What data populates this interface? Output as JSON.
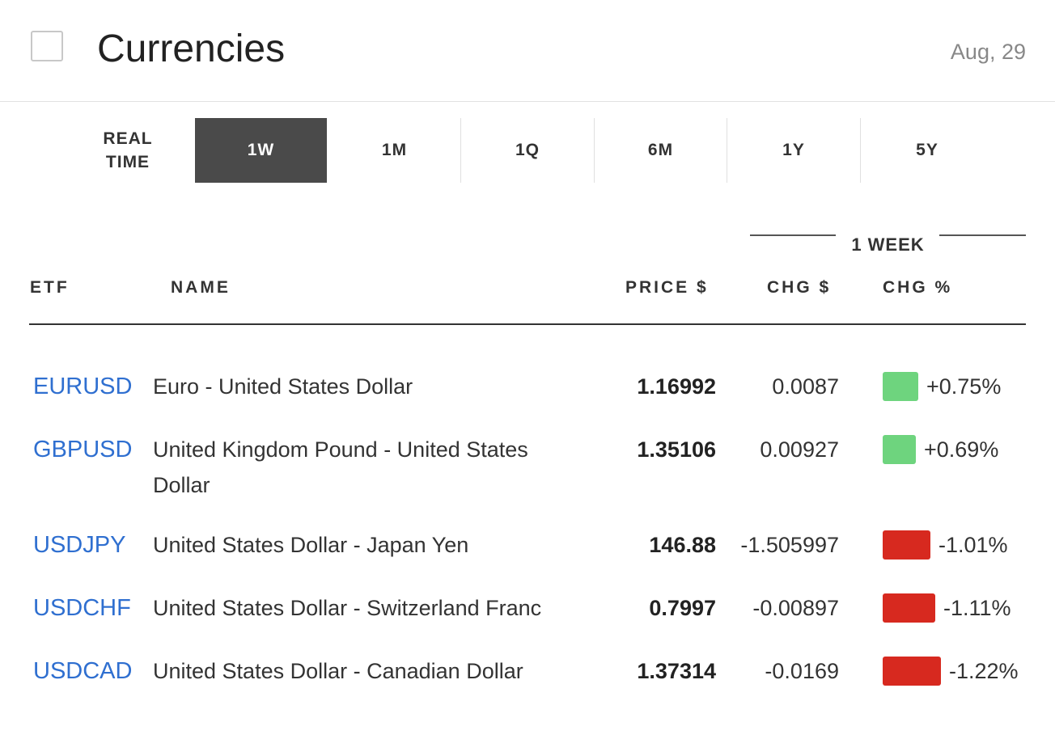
{
  "header": {
    "title": "Currencies",
    "date": "Aug, 29"
  },
  "tabs": [
    {
      "label": "REAL TIME",
      "active": false
    },
    {
      "label": "1W",
      "active": true
    },
    {
      "label": "1M",
      "active": false
    },
    {
      "label": "1Q",
      "active": false
    },
    {
      "label": "6M",
      "active": false
    },
    {
      "label": "1Y",
      "active": false
    },
    {
      "label": "5Y",
      "active": false
    }
  ],
  "table": {
    "period_label": "1 WEEK",
    "columns": {
      "etf": "ETF",
      "name": "NAME",
      "price": "PRICE $",
      "chg": "CHG $",
      "chg_pct": "CHG %"
    },
    "rows": [
      {
        "etf": "EURUSD",
        "name": "Euro - United States Dollar",
        "price": "1.16992",
        "chg": "0.0087",
        "chg_pct": "+0.75%",
        "direction": "up"
      },
      {
        "etf": "GBPUSD",
        "name": "United Kingdom Pound - United States Dollar",
        "price": "1.35106",
        "chg": "0.00927",
        "chg_pct": "+0.69%",
        "direction": "up"
      },
      {
        "etf": "USDJPY",
        "name": "United States Dollar - Japan Yen",
        "price": "146.88",
        "chg": "-1.505997",
        "chg_pct": "-1.01%",
        "direction": "down"
      },
      {
        "etf": "USDCHF",
        "name": "United States Dollar - Switzerland Franc",
        "price": "0.7997",
        "chg": "-0.00897",
        "chg_pct": "-1.11%",
        "direction": "down"
      },
      {
        "etf": "USDCAD",
        "name": "United States Dollar - Canadian Dollar",
        "price": "1.37314",
        "chg": "-0.0169",
        "chg_pct": "-1.22%",
        "direction": "down"
      }
    ]
  },
  "colors": {
    "link": "#2f6fd0",
    "positive": "#6ed47e",
    "negative": "#d7291f",
    "active_tab": "#4a4a4a"
  }
}
